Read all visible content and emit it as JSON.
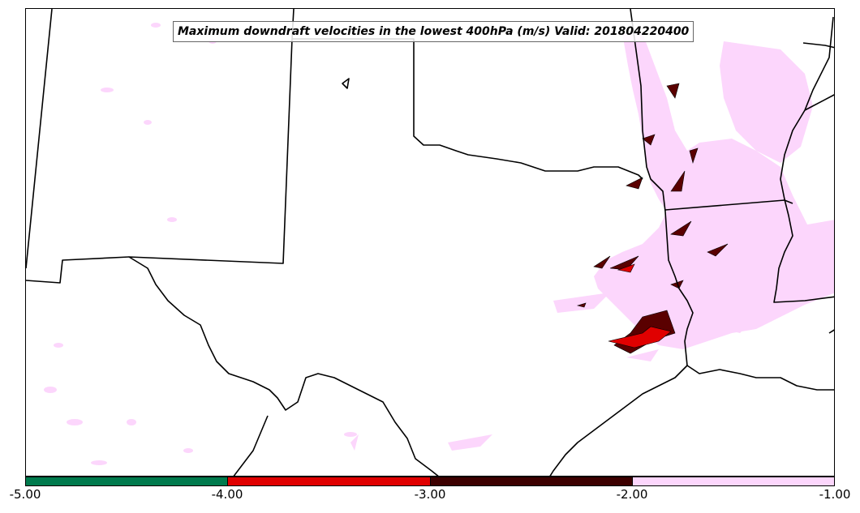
{
  "title": "Maximum downdraft velocities in the lowest 400hPa (m/s) Valid: 201804220400",
  "colorbar": {
    "ticks": [
      "-5.00",
      "-4.00",
      "-3.00",
      "-2.00",
      "-1.00"
    ],
    "bins": [
      {
        "range": [
          -5.0,
          -4.0
        ],
        "color": "#007a4d"
      },
      {
        "range": [
          -4.0,
          -3.0
        ],
        "color": "#e00000"
      },
      {
        "range": [
          -3.0,
          -2.0
        ],
        "color": "#3d0000"
      },
      {
        "range": [
          -2.0,
          -1.0
        ],
        "color": "#fcd6fc"
      }
    ]
  },
  "colors": {
    "background": "#ffffff",
    "boundary": "#000000",
    "light_field": "#fcd6fc",
    "dark_field": "#5a0000",
    "red_field": "#e00000"
  }
}
